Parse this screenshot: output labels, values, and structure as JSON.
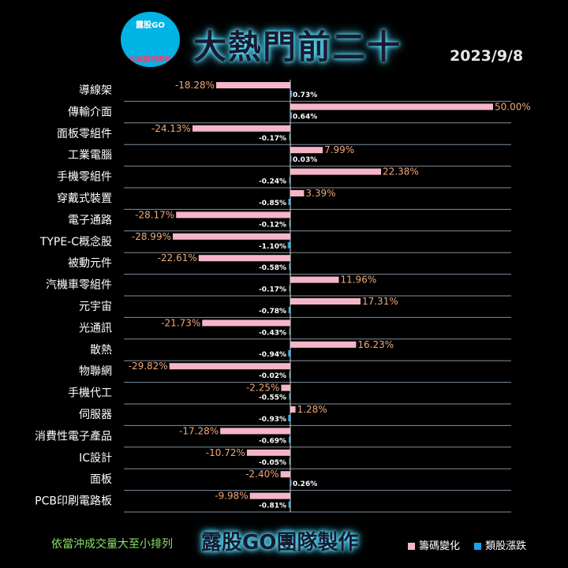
{
  "header": {
    "logo_text": "露股GO",
    "logo_sub": "耽與僱的串珍",
    "title": "大熱門前二十",
    "date": "2023/9/8"
  },
  "footer": {
    "note": "依當沖成交量大至小排列",
    "team": "露股GO團隊製作"
  },
  "colors": {
    "chip": "#f5b5c8",
    "sector": "#1aa3e8",
    "chip_label": "#f0a878",
    "grid": "#7f8fa0"
  },
  "chart_data": {
    "type": "bar",
    "orientation": "horizontal",
    "categories": [
      "導線架",
      "傳輸介面",
      "面板零組件",
      "工業電腦",
      "手機零組件",
      "穿戴式裝置",
      "電子通路",
      "TYPE-C概念股",
      "被動元件",
      "汽機車零組件",
      "元宇宙",
      "光通訊",
      "散熱",
      "物聯網",
      "手機代工",
      "伺服器",
      "消費性電子產品",
      "IC設計",
      "面板",
      "PCB印刷電路板"
    ],
    "series": [
      {
        "name": "籌碼變化",
        "unit": "%",
        "values": [
          -18.28,
          50.0,
          -24.13,
          7.99,
          22.38,
          3.39,
          -28.17,
          -28.99,
          -22.61,
          11.96,
          17.31,
          -21.73,
          16.23,
          -29.82,
          -2.25,
          1.28,
          -17.28,
          -10.72,
          -2.4,
          -9.98
        ],
        "labels": [
          "-18.28%",
          "50.00%",
          "-24.13%",
          "7.99%",
          "22.38%",
          "3.39%",
          "-28.17%",
          "-28.99%",
          "-22.61%",
          "11.96%",
          "17.31%",
          "-21.73%",
          "16.23%",
          "-29.82%",
          "-2.25%",
          "1.28%",
          "-17.28%",
          "-10.72%",
          "-2.40%",
          "-9.98%"
        ]
      },
      {
        "name": "類股漲跌",
        "unit": "%",
        "values": [
          0.73,
          0.64,
          -0.17,
          0.03,
          -0.24,
          -0.85,
          -0.12,
          -1.1,
          -0.58,
          -0.17,
          -0.78,
          -0.43,
          -0.94,
          -0.02,
          -0.55,
          -0.93,
          -0.69,
          -0.05,
          0.26,
          -0.81
        ],
        "labels": [
          "0.73%",
          "0.64%",
          "-0.17%",
          "0.03%",
          "-0.24%",
          "-0.85%",
          "-0.12%",
          "-1.10%",
          "-0.58%",
          "-0.17%",
          "-0.78%",
          "-0.43%",
          "-0.94%",
          "-0.02%",
          "-0.55%",
          "-0.93%",
          "-0.69%",
          "-0.05%",
          "0.26%",
          "-0.81%"
        ]
      }
    ],
    "grid": true,
    "legend": "bottom-right"
  }
}
